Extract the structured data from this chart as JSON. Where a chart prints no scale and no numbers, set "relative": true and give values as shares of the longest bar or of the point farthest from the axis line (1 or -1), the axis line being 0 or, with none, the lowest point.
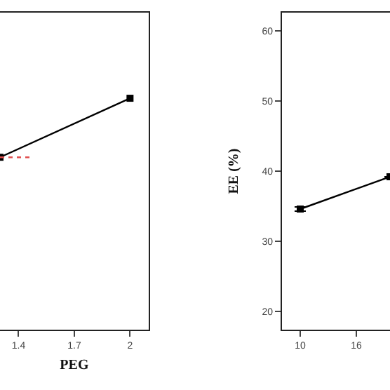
{
  "chart_data": [
    {
      "type": "line",
      "xlabel": "PEG",
      "relative": true,
      "xlim": [
        1.3,
        2.1
      ],
      "xticks": [
        1.4,
        1.7,
        2
      ],
      "tick_labels": "x",
      "marker": "square",
      "series": [
        {
          "color": "#000000",
          "x": [
            1.3,
            2
          ],
          "values": [
            0.745,
            1
          ],
          "line_style": "solid"
        },
        {
          "color": "#e05050",
          "x": [
            1.3,
            1.48
          ],
          "values": [
            0.745,
            0.745
          ],
          "line_style": "dotted",
          "marker": "none"
        }
      ]
    },
    {
      "type": "line",
      "ylabel": "EE (%)",
      "xlim": [
        8.05,
        19.6
      ],
      "xticks": [
        10,
        16
      ],
      "ylim": [
        17.4,
        62.6
      ],
      "yticks": [
        20,
        30,
        40,
        50,
        60
      ],
      "marker": "square",
      "series": [
        {
          "color": "#000000",
          "x": [
            10,
            19.6
          ],
          "values": [
            34.6,
            39.2
          ],
          "errors": [
            0.3,
            null
          ],
          "line_style": "solid"
        }
      ]
    }
  ]
}
